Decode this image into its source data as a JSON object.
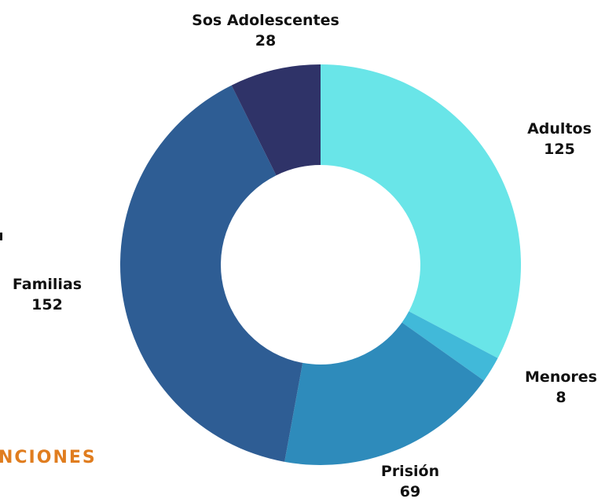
{
  "chart_data": {
    "type": "pie",
    "donut": true,
    "categories": [
      "Adultos",
      "Menores",
      "Prisión",
      "Familias",
      "Sos Adolescentes"
    ],
    "values": [
      125,
      8,
      69,
      152,
      28
    ],
    "colors": [
      "#69e5e8",
      "#41b9d9",
      "#2e8bbb",
      "#2e5d94",
      "#2f3368"
    ],
    "title": "",
    "legend": "none",
    "data_labels": "outside"
  },
  "background": {
    "partial_heading": "NCIONES",
    "partial_heading_color": "#e07d1f"
  }
}
